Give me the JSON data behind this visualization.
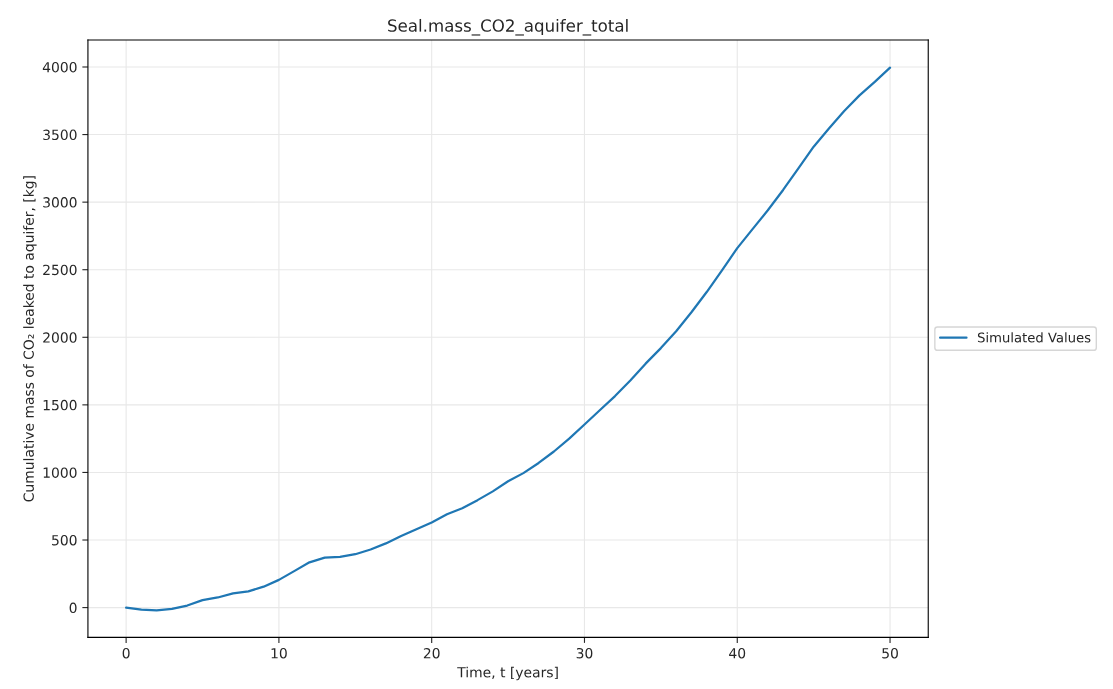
{
  "chart_data": {
    "type": "line",
    "title": "Seal.mass_CO2_aquifer_total",
    "xlabel": "Time, t [years]",
    "ylabel": "Cumulative mass of CO₂ leaked to aquifer, [kg]",
    "x": [
      0,
      1,
      2,
      3,
      4,
      5,
      6,
      7,
      8,
      9,
      10,
      11,
      12,
      13,
      14,
      15,
      16,
      17,
      18,
      19,
      20,
      21,
      22,
      23,
      24,
      25,
      26,
      27,
      28,
      29,
      30,
      31,
      32,
      33,
      34,
      35,
      36,
      37,
      38,
      39,
      40,
      41,
      42,
      43,
      44,
      45,
      46,
      47,
      48,
      49,
      50
    ],
    "series": [
      {
        "name": "Simulated Values",
        "color": "#1f77b4",
        "values": [
          0,
          -15,
          -20,
          -10,
          15,
          55,
          75,
          105,
          120,
          155,
          205,
          270,
          335,
          370,
          375,
          395,
          430,
          475,
          530,
          580,
          630,
          690,
          735,
          795,
          860,
          935,
          995,
          1070,
          1155,
          1250,
          1355,
          1460,
          1565,
          1680,
          1805,
          1920,
          2045,
          2185,
          2335,
          2495,
          2660,
          2800,
          2940,
          3090,
          3250,
          3410,
          3545,
          3675,
          3790,
          3890,
          3995
        ]
      }
    ],
    "xlim": [
      -2.5,
      52.5
    ],
    "ylim": [
      -220,
      4200
    ],
    "xticks": [
      0,
      10,
      20,
      30,
      40,
      50
    ],
    "yticks": [
      0,
      500,
      1000,
      1500,
      2000,
      2500,
      3000,
      3500,
      4000
    ],
    "grid": true,
    "legend": "right",
    "marker": "none",
    "line_style": "solid"
  }
}
